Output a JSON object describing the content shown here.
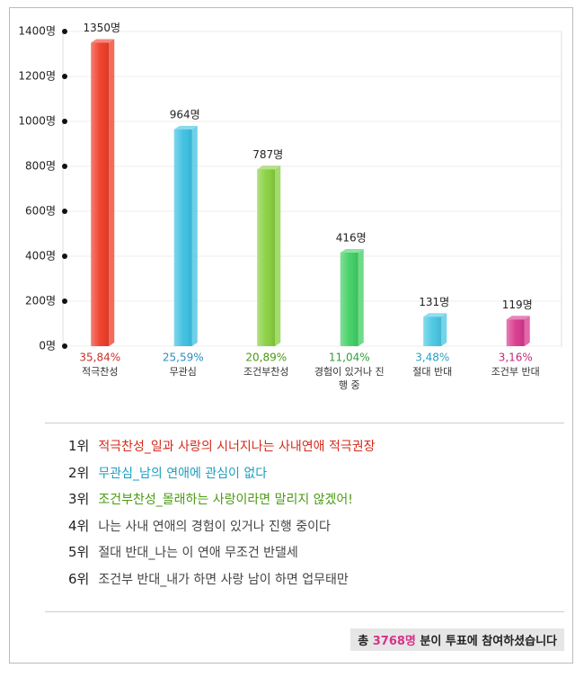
{
  "chart_data": {
    "type": "bar",
    "categories": [
      "적극찬성",
      "무관심",
      "조건부찬성",
      "경험이 있거나 진행 중",
      "절대 반대",
      "조건부 반대"
    ],
    "values": [
      1350,
      964,
      787,
      416,
      131,
      119
    ],
    "value_labels": [
      "1350명",
      "964명",
      "787명",
      "416명",
      "131명",
      "119명"
    ],
    "colors": [
      "#ee3b26",
      "#3cc0e2",
      "#86cf3c",
      "#3fcf62",
      "#46c6e2",
      "#d8368c"
    ],
    "shares": {
      "values": [
        35.84,
        25.59,
        20.89,
        11.04,
        3.48,
        3.16
      ],
      "value_labels": [
        "35,84%",
        "25,59%",
        "20,89%",
        "11,04%",
        "3,48%",
        "3,16%"
      ],
      "colors": [
        "#c8322a",
        "#2a8fc4",
        "#4a9a10",
        "#2e9e40",
        "#2a9fc4",
        "#c42a7c"
      ]
    },
    "ylim": [
      0,
      1400
    ],
    "yticks": [
      {
        "value": 0,
        "label": "0명"
      },
      {
        "value": 200,
        "label": "200명"
      },
      {
        "value": 400,
        "label": "400명"
      },
      {
        "value": 600,
        "label": "600명"
      },
      {
        "value": 800,
        "label": "800명"
      },
      {
        "value": 1000,
        "label": "1000명"
      },
      {
        "value": 1200,
        "label": "1200명"
      },
      {
        "value": 1400,
        "label": "1400명"
      }
    ],
    "grid": true
  },
  "ranking": [
    {
      "rank": "1위",
      "text": "적극찬성_일과 사랑의 시너지나는 사내연애 적극권장",
      "color": "#d42a1a"
    },
    {
      "rank": "2위",
      "text": "무관심_남의 연애에 관심이 없다",
      "color": "#1a9fc0"
    },
    {
      "rank": "3위",
      "text": "조건부찬성_몰래하는 사랑이라면 말리지 않겠어!",
      "color": "#4a9a10"
    },
    {
      "rank": "4위",
      "text": "나는 사내 연애의 경험이 있거나 진행 중이다",
      "color": "#444444"
    },
    {
      "rank": "5위",
      "text": "절대 반대_나는 이 연애 무조건 반댈세",
      "color": "#444444"
    },
    {
      "rank": "6위",
      "text": "조건부 반대_내가 하면 사랑 남이 하면 업무태만",
      "color": "#444444"
    }
  ],
  "footer": {
    "prefix": "총",
    "total": "3768명",
    "suffix": "분이 투표에 참여하셨습니다"
  }
}
